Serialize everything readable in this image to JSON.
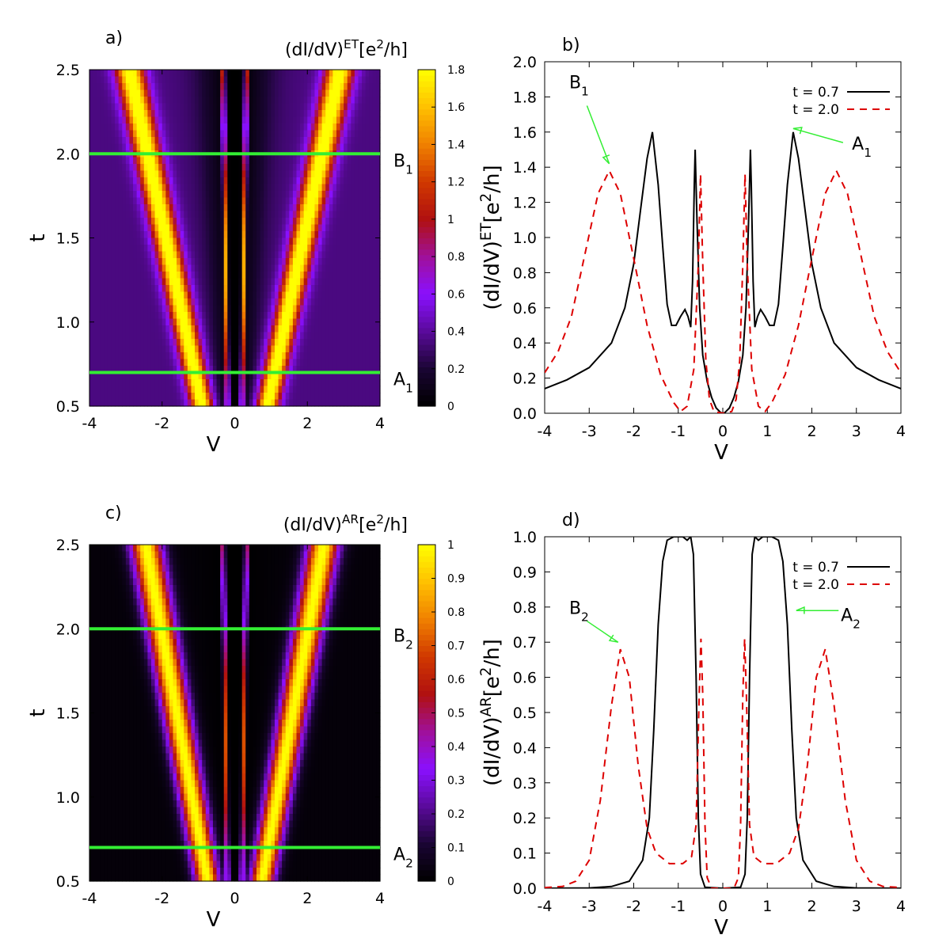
{
  "colors": {
    "background": "#ffffff",
    "axis": "#000000",
    "marker_lines": "#33ee33",
    "curve_t07": "#000000",
    "curve_t20": "#dd0000",
    "colormap": [
      "#000000",
      "#1a0533",
      "#5a0a9a",
      "#8a10ff",
      "#a0109a",
      "#b01010",
      "#d03800",
      "#f08000",
      "#ffc000",
      "#ffff00"
    ]
  },
  "chart_data": [
    {
      "id": "a",
      "panel_label": "a)",
      "type": "heatmap",
      "title": "(dI/dV)",
      "title_sup": "ET",
      "title_unit_pre": "[e",
      "title_unit_sup": "2",
      "title_unit_post": "/h]",
      "xlabel": "V",
      "ylabel": "t",
      "xlim": [
        -4,
        4
      ],
      "ylim": [
        0.5,
        2.5
      ],
      "xticks": [
        "-4",
        "-2",
        "0",
        "2",
        "4"
      ],
      "yticks": [
        "0.5",
        "1.0",
        "1.5",
        "2.0",
        "2.5"
      ],
      "colorbar": {
        "min": 0,
        "max": 1.8,
        "ticks": [
          "0",
          "0.2",
          "0.4",
          "0.6",
          "0.8",
          "1",
          "1.2",
          "1.4",
          "1.6",
          "1.8"
        ]
      },
      "model": {
        "outer_base": 0.9,
        "outer_slope": 1.0,
        "inner_base": 0.2,
        "inner_slope": 0.06,
        "outer_width": 0.3,
        "inner_width": 0.05,
        "outer_peak": 1.6,
        "inner_peak": 1.5,
        "background": 0.35,
        "center_width": 0.35
      },
      "marker_lines": [
        {
          "t": 2.0,
          "label": "B",
          "sub": "1"
        },
        {
          "t": 0.7,
          "label": "A",
          "sub": "1"
        }
      ]
    },
    {
      "id": "b",
      "panel_label": "b)",
      "type": "line",
      "ylabel": "(dI/dV)",
      "ylabel_sup": "ET",
      "ylabel_unit_pre": "[e",
      "ylabel_unit_sup": "2",
      "ylabel_unit_post": "/h]",
      "xlabel": "V",
      "xlim": [
        -4,
        4
      ],
      "ylim": [
        0,
        2.0
      ],
      "xticks": [
        "-4",
        "-3",
        "-2",
        "-1",
        "0",
        "1",
        "2",
        "3",
        "4"
      ],
      "yticks": [
        "0.0",
        "0.2",
        "0.4",
        "0.6",
        "0.8",
        "1.0",
        "1.2",
        "1.4",
        "1.6",
        "1.8",
        "2.0"
      ],
      "legend": [
        {
          "label": "t = 0.7",
          "style": "solid"
        },
        {
          "label": "t = 2.0",
          "style": "dashed"
        }
      ],
      "series": [
        {
          "name": "t = 0.7",
          "points": [
            [
              -4,
              0.14
            ],
            [
              -3.5,
              0.19
            ],
            [
              -3,
              0.26
            ],
            [
              -2.5,
              0.4
            ],
            [
              -2.2,
              0.6
            ],
            [
              -2,
              0.85
            ],
            [
              -1.85,
              1.15
            ],
            [
              -1.7,
              1.45
            ],
            [
              -1.58,
              1.6
            ],
            [
              -1.45,
              1.3
            ],
            [
              -1.35,
              0.95
            ],
            [
              -1.25,
              0.62
            ],
            [
              -1.15,
              0.5
            ],
            [
              -1.05,
              0.5
            ],
            [
              -0.95,
              0.55
            ],
            [
              -0.85,
              0.59
            ],
            [
              -0.78,
              0.55
            ],
            [
              -0.72,
              0.49
            ],
            [
              -0.68,
              0.75
            ],
            [
              -0.64,
              1.3
            ],
            [
              -0.62,
              1.5
            ],
            [
              -0.58,
              1.1
            ],
            [
              -0.52,
              0.6
            ],
            [
              -0.45,
              0.33
            ],
            [
              -0.35,
              0.18
            ],
            [
              -0.25,
              0.09
            ],
            [
              -0.15,
              0.03
            ],
            [
              -0.05,
              0.005
            ],
            [
              0,
              0
            ],
            [
              0.05,
              0.005
            ],
            [
              0.15,
              0.03
            ],
            [
              0.25,
              0.09
            ],
            [
              0.35,
              0.18
            ],
            [
              0.45,
              0.33
            ],
            [
              0.52,
              0.6
            ],
            [
              0.58,
              1.1
            ],
            [
              0.62,
              1.5
            ],
            [
              0.64,
              1.3
            ],
            [
              0.68,
              0.75
            ],
            [
              0.72,
              0.49
            ],
            [
              0.78,
              0.55
            ],
            [
              0.85,
              0.59
            ],
            [
              0.95,
              0.55
            ],
            [
              1.05,
              0.5
            ],
            [
              1.15,
              0.5
            ],
            [
              1.25,
              0.62
            ],
            [
              1.35,
              0.95
            ],
            [
              1.45,
              1.3
            ],
            [
              1.58,
              1.6
            ],
            [
              1.7,
              1.45
            ],
            [
              1.85,
              1.15
            ],
            [
              2,
              0.85
            ],
            [
              2.2,
              0.6
            ],
            [
              2.5,
              0.4
            ],
            [
              3,
              0.26
            ],
            [
              3.5,
              0.19
            ],
            [
              4,
              0.14
            ]
          ]
        },
        {
          "name": "t = 2.0",
          "points": [
            [
              -4,
              0.23
            ],
            [
              -3.7,
              0.35
            ],
            [
              -3.4,
              0.55
            ],
            [
              -3.1,
              0.9
            ],
            [
              -2.8,
              1.25
            ],
            [
              -2.55,
              1.38
            ],
            [
              -2.3,
              1.25
            ],
            [
              -2.0,
              0.88
            ],
            [
              -1.7,
              0.5
            ],
            [
              -1.4,
              0.22
            ],
            [
              -1.1,
              0.06
            ],
            [
              -0.95,
              0.01
            ],
            [
              -0.8,
              0.04
            ],
            [
              -0.65,
              0.25
            ],
            [
              -0.55,
              0.85
            ],
            [
              -0.5,
              1.36
            ],
            [
              -0.45,
              0.85
            ],
            [
              -0.38,
              0.3
            ],
            [
              -0.3,
              0.08
            ],
            [
              -0.2,
              0.01
            ],
            [
              0,
              0
            ],
            [
              0.2,
              0.01
            ],
            [
              0.3,
              0.08
            ],
            [
              0.38,
              0.3
            ],
            [
              0.45,
              0.85
            ],
            [
              0.5,
              1.36
            ],
            [
              0.55,
              0.85
            ],
            [
              0.65,
              0.25
            ],
            [
              0.8,
              0.04
            ],
            [
              0.95,
              0.01
            ],
            [
              1.1,
              0.06
            ],
            [
              1.4,
              0.22
            ],
            [
              1.7,
              0.5
            ],
            [
              2.0,
              0.88
            ],
            [
              2.3,
              1.25
            ],
            [
              2.55,
              1.38
            ],
            [
              2.8,
              1.25
            ],
            [
              3.1,
              0.9
            ],
            [
              3.4,
              0.55
            ],
            [
              3.7,
              0.35
            ],
            [
              4,
              0.23
            ]
          ]
        }
      ],
      "annotations": [
        {
          "label": "B",
          "sub": "1",
          "text_at": [
            -3.45,
            1.85
          ],
          "arrow_from": [
            -3.05,
            1.75
          ],
          "arrow_to": [
            -2.55,
            1.42
          ]
        },
        {
          "label": "A",
          "sub": "1",
          "text_at": [
            2.9,
            1.5
          ],
          "arrow_from": [
            2.7,
            1.54
          ],
          "arrow_to": [
            1.58,
            1.62
          ]
        }
      ]
    },
    {
      "id": "c",
      "panel_label": "c)",
      "type": "heatmap",
      "title": "(dI/dV)",
      "title_sup": "AR",
      "title_unit_pre": "[e",
      "title_unit_sup": "2",
      "title_unit_post": "/h]",
      "xlabel": "V",
      "ylabel": "t",
      "xlim": [
        -4,
        4
      ],
      "ylim": [
        0.5,
        2.5
      ],
      "xticks": [
        "-4",
        "-2",
        "0",
        "2",
        "4"
      ],
      "yticks": [
        "0.5",
        "1.0",
        "1.5",
        "2.0",
        "2.5"
      ],
      "colorbar": {
        "min": 0,
        "max": 1.0,
        "ticks": [
          "0",
          "0.1",
          "0.2",
          "0.3",
          "0.4",
          "0.5",
          "0.6",
          "0.7",
          "0.8",
          "0.9",
          "1"
        ]
      },
      "model": {
        "outer_base": 0.75,
        "outer_slope": 0.85,
        "inner_base": 0.2,
        "inner_slope": 0.06,
        "outer_width": 0.32,
        "inner_width": 0.05,
        "outer_peak": 1.0,
        "inner_peak": 0.7,
        "background": 0.02,
        "center_width": 0.4
      },
      "marker_lines": [
        {
          "t": 2.0,
          "label": "B",
          "sub": "2"
        },
        {
          "t": 0.7,
          "label": "A",
          "sub": "2"
        }
      ]
    },
    {
      "id": "d",
      "panel_label": "d)",
      "type": "line",
      "ylabel": "(dI/dV)",
      "ylabel_sup": "AR",
      "ylabel_unit_pre": "[e",
      "ylabel_unit_sup": "2",
      "ylabel_unit_post": "/h]",
      "xlabel": "V",
      "xlim": [
        -4,
        4
      ],
      "ylim": [
        0,
        1.0
      ],
      "xticks": [
        "-4",
        "-3",
        "-2",
        "-1",
        "0",
        "1",
        "2",
        "3",
        "4"
      ],
      "yticks": [
        "0.0",
        "0.1",
        "0.2",
        "0.3",
        "0.4",
        "0.5",
        "0.6",
        "0.7",
        "0.8",
        "0.9",
        "1.0"
      ],
      "legend": [
        {
          "label": "t = 0.7",
          "style": "solid"
        },
        {
          "label": "t = 2.0",
          "style": "dashed"
        }
      ],
      "series": [
        {
          "name": "t = 0.7",
          "points": [
            [
              -4,
              0
            ],
            [
              -3,
              0.001
            ],
            [
              -2.5,
              0.005
            ],
            [
              -2.1,
              0.02
            ],
            [
              -1.8,
              0.08
            ],
            [
              -1.65,
              0.2
            ],
            [
              -1.55,
              0.45
            ],
            [
              -1.45,
              0.75
            ],
            [
              -1.35,
              0.93
            ],
            [
              -1.25,
              0.99
            ],
            [
              -1.1,
              1.0
            ],
            [
              -0.9,
              1.0
            ],
            [
              -0.8,
              0.99
            ],
            [
              -0.72,
              1.0
            ],
            [
              -0.66,
              0.95
            ],
            [
              -0.6,
              0.6
            ],
            [
              -0.55,
              0.2
            ],
            [
              -0.5,
              0.04
            ],
            [
              -0.4,
              0.003
            ],
            [
              0,
              0
            ],
            [
              0.4,
              0.003
            ],
            [
              0.5,
              0.04
            ],
            [
              0.55,
              0.2
            ],
            [
              0.6,
              0.6
            ],
            [
              0.66,
              0.95
            ],
            [
              0.72,
              1.0
            ],
            [
              0.8,
              0.99
            ],
            [
              0.9,
              1.0
            ],
            [
              1.1,
              1.0
            ],
            [
              1.25,
              0.99
            ],
            [
              1.35,
              0.93
            ],
            [
              1.45,
              0.75
            ],
            [
              1.55,
              0.45
            ],
            [
              1.65,
              0.2
            ],
            [
              1.8,
              0.08
            ],
            [
              2.1,
              0.02
            ],
            [
              2.5,
              0.005
            ],
            [
              3,
              0.001
            ],
            [
              4,
              0
            ]
          ]
        },
        {
          "name": "t = 2.0",
          "points": [
            [
              -4,
              0.002
            ],
            [
              -3.6,
              0.005
            ],
            [
              -3.3,
              0.02
            ],
            [
              -3.0,
              0.08
            ],
            [
              -2.75,
              0.25
            ],
            [
              -2.5,
              0.52
            ],
            [
              -2.3,
              0.68
            ],
            [
              -2.1,
              0.6
            ],
            [
              -1.9,
              0.35
            ],
            [
              -1.7,
              0.17
            ],
            [
              -1.5,
              0.1
            ],
            [
              -1.2,
              0.07
            ],
            [
              -0.9,
              0.07
            ],
            [
              -0.7,
              0.09
            ],
            [
              -0.6,
              0.18
            ],
            [
              -0.53,
              0.55
            ],
            [
              -0.49,
              0.71
            ],
            [
              -0.45,
              0.55
            ],
            [
              -0.4,
              0.18
            ],
            [
              -0.35,
              0.03
            ],
            [
              -0.25,
              0
            ],
            [
              0,
              0
            ],
            [
              0.25,
              0
            ],
            [
              0.35,
              0.03
            ],
            [
              0.4,
              0.18
            ],
            [
              0.45,
              0.55
            ],
            [
              0.49,
              0.71
            ],
            [
              0.53,
              0.55
            ],
            [
              0.6,
              0.18
            ],
            [
              0.7,
              0.09
            ],
            [
              0.9,
              0.07
            ],
            [
              1.2,
              0.07
            ],
            [
              1.5,
              0.1
            ],
            [
              1.7,
              0.17
            ],
            [
              1.9,
              0.35
            ],
            [
              2.1,
              0.6
            ],
            [
              2.3,
              0.68
            ],
            [
              2.5,
              0.52
            ],
            [
              2.75,
              0.25
            ],
            [
              3.0,
              0.08
            ],
            [
              3.3,
              0.02
            ],
            [
              3.6,
              0.005
            ],
            [
              4,
              0.002
            ]
          ]
        }
      ],
      "annotations": [
        {
          "label": "B",
          "sub": "2",
          "text_at": [
            -3.45,
            0.78
          ],
          "arrow_from": [
            -3.05,
            0.76
          ],
          "arrow_to": [
            -2.35,
            0.7
          ]
        },
        {
          "label": "A",
          "sub": "2",
          "text_at": [
            2.65,
            0.76
          ],
          "arrow_from": [
            2.6,
            0.79
          ],
          "arrow_to": [
            1.65,
            0.79
          ]
        }
      ]
    }
  ]
}
